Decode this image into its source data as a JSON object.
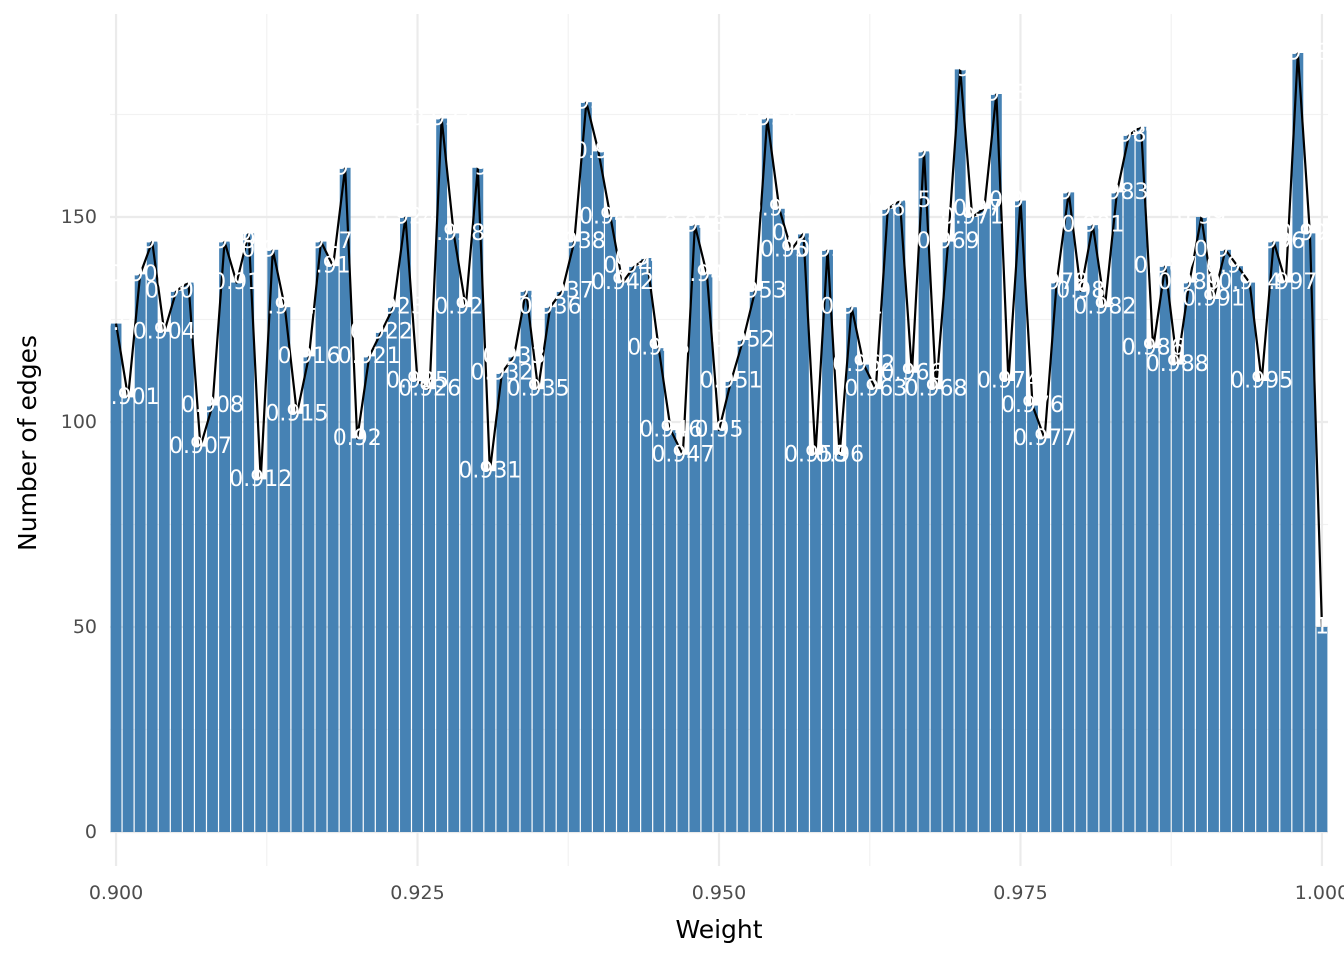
{
  "chart_data": {
    "type": "bar",
    "title": "",
    "xlabel": "Weight",
    "ylabel": "Number of edges",
    "xlim": [
      0.8995,
      1.0005
    ],
    "ylim": [
      0,
      190
    ],
    "x_ticks": [
      "0.900",
      "0.925",
      "0.950",
      "0.975",
      "1.000"
    ],
    "x_tick_values": [
      0.9,
      0.925,
      0.95,
      0.975,
      1.0
    ],
    "y_ticks": [
      "0",
      "50",
      "100",
      "150"
    ],
    "y_tick_values": [
      0,
      50,
      100,
      150
    ],
    "grid": true,
    "bar_color": "#4682B4",
    "line_color": "#000000",
    "label_color": "#FFFFFF",
    "series": [
      {
        "x": [
          0.9,
          0.901,
          0.902,
          0.903,
          0.904,
          0.905,
          0.906,
          0.907,
          0.908,
          0.909,
          0.91,
          0.911,
          0.912,
          0.913,
          0.914,
          0.915,
          0.916,
          0.917,
          0.918,
          0.919,
          0.92,
          0.921,
          0.922,
          0.923,
          0.924,
          0.925,
          0.926,
          0.927,
          0.928,
          0.929,
          0.93,
          0.931,
          0.932,
          0.933,
          0.934,
          0.935,
          0.936,
          0.937,
          0.938,
          0.939,
          0.94,
          0.941,
          0.942,
          0.943,
          0.944,
          0.945,
          0.946,
          0.947,
          0.948,
          0.949,
          0.95,
          0.951,
          0.952,
          0.953,
          0.954,
          0.955,
          0.956,
          0.957,
          0.958,
          0.959,
          0.96,
          0.961,
          0.962,
          0.963,
          0.964,
          0.965,
          0.966,
          0.967,
          0.968,
          0.969,
          0.97,
          0.971,
          0.972,
          0.973,
          0.974,
          0.975,
          0.976,
          0.977,
          0.978,
          0.979,
          0.98,
          0.981,
          0.982,
          0.983,
          0.984,
          0.985,
          0.986,
          0.987,
          0.988,
          0.989,
          0.99,
          0.991,
          0.992,
          0.993,
          0.994,
          0.995,
          0.996,
          0.997,
          0.998,
          0.999,
          1.0
        ],
        "values": [
          124,
          106,
          136,
          144,
          122,
          132,
          134,
          94,
          104,
          144,
          134,
          146,
          86,
          142,
          128,
          102,
          116,
          144,
          138,
          162,
          96,
          116,
          122,
          128,
          150,
          110,
          108,
          174,
          146,
          128,
          162,
          88,
          112,
          116,
          132,
          108,
          128,
          132,
          144,
          178,
          166,
          150,
          134,
          138,
          140,
          118,
          98,
          92,
          148,
          136,
          98,
          110,
          120,
          132,
          174,
          152,
          142,
          146,
          92,
          142,
          92,
          128,
          114,
          108,
          152,
          154,
          112,
          166,
          108,
          144,
          186,
          150,
          152,
          180,
          110,
          154,
          104,
          96,
          134,
          156,
          132,
          148,
          128,
          156,
          170,
          172,
          118,
          138,
          114,
          134,
          150,
          130,
          142,
          138,
          134,
          110,
          144,
          134,
          190,
          146,
          50
        ],
        "labels": [
          "0.9",
          "0.901",
          "0.902",
          "0.903",
          "0.904",
          "0.905",
          "0.906",
          "0.907",
          "0.908",
          "0.909",
          "0.91",
          "0.911",
          "0.912",
          "0.913",
          "0.914",
          "0.915",
          "0.916",
          "0.917",
          "0.918",
          "0.919",
          "0.92",
          "0.921",
          "0.922",
          "0.923",
          "0.924",
          "0.925",
          "0.926",
          "0.927",
          "0.928",
          "0.929",
          "0.93",
          "0.931",
          "0.932",
          "0.933",
          "0.934",
          "0.935",
          "0.936",
          "0.937",
          "0.938",
          "0.939",
          "0.94",
          "0.941",
          "0.942",
          "0.943",
          "0.944",
          "0.945",
          "0.946",
          "0.947",
          "0.948",
          "0.949",
          "0.95",
          "0.951",
          "0.952",
          "0.953",
          "0.954",
          "0.955",
          "0.956",
          "0.957",
          "0.958",
          "0.959",
          "0.96",
          "0.961",
          "0.962",
          "0.963",
          "0.964",
          "0.965",
          "0.966",
          "0.967",
          "0.968",
          "0.969",
          "0.97",
          "0.971",
          "0.972",
          "0.973",
          "0.974",
          "0.975",
          "0.976",
          "0.977",
          "0.978",
          "0.979",
          "0.98",
          "0.981",
          "0.982",
          "0.983",
          "0.984",
          "0.985",
          "0.986",
          "0.987",
          "0.988",
          "0.989",
          "0.99",
          "0.991",
          "0.992",
          "0.993",
          "0.994",
          "0.995",
          "0.996",
          "0.997",
          "0.998",
          "0.999",
          "1"
        ]
      }
    ]
  }
}
